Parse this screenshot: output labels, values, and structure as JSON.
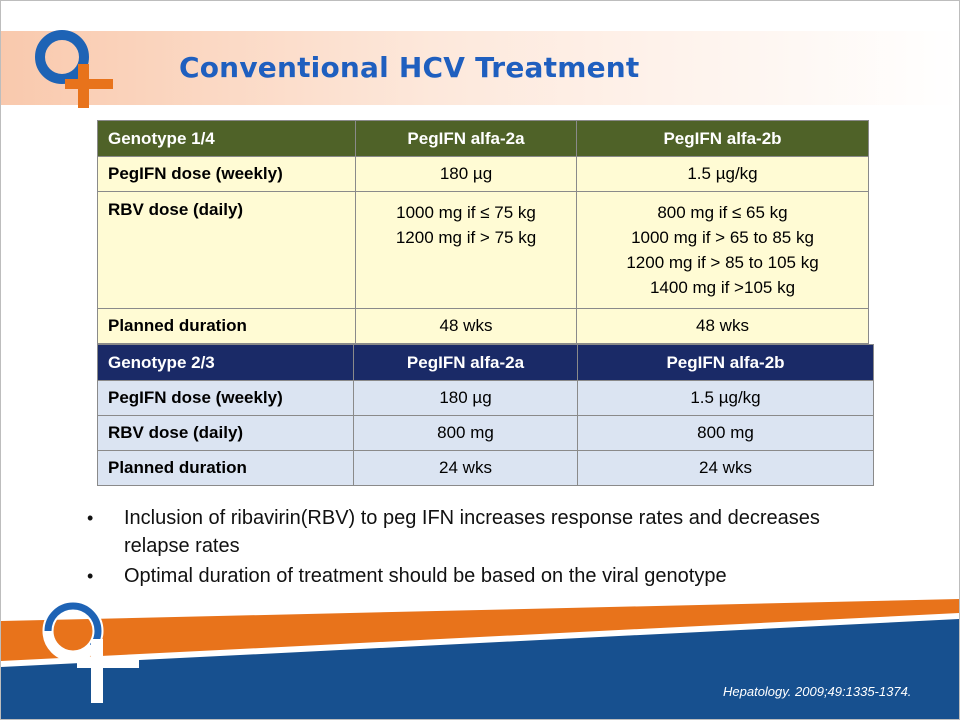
{
  "title": "Conventional HCV Treatment",
  "colors": {
    "title": "#1f5fbf",
    "orange": "#e8731b",
    "navy": "#17508f",
    "olive": "#4f6228",
    "dark_blue": "#1a2a67"
  },
  "table1": {
    "headers": [
      "Genotype  1/4",
      "PegIFN alfa-2a",
      "PegIFN alfa-2b"
    ],
    "rows": [
      {
        "label": "PegIFN dose (weekly)",
        "a": "180 µg",
        "b": "1.5 µg/kg"
      },
      {
        "label": "RBV dose (daily)",
        "a": "1000 mg if ≤ 75 kg\n1200 mg if > 75 kg",
        "b": "800 mg if ≤ 65 kg\n1000 mg if > 65 to 85 kg\n1200 mg if > 85 to 105 kg\n1400 mg if >105 kg"
      },
      {
        "label": "Planned duration",
        "a": "48 wks",
        "b": "48 wks"
      }
    ]
  },
  "table2": {
    "headers": [
      "Genotype  2/3",
      "PegIFN alfa-2a",
      "PegIFN alfa-2b"
    ],
    "rows": [
      {
        "label": "PegIFN dose (weekly)",
        "a": "180 µg",
        "b": "1.5 µg/kg"
      },
      {
        "label": "RBV dose (daily)",
        "a": "800 mg",
        "b": "800 mg"
      },
      {
        "label": "Planned duration",
        "a": "24 wks",
        "b": "24 wks"
      }
    ]
  },
  "bullets": [
    "Inclusion of ribavirin(RBV) to peg IFN increases response rates and decreases relapse rates",
    "Optimal duration of treatment should be based on the viral genotype"
  ],
  "bullet_symbol": "•",
  "citation": "Hepatology. 2009;49:1335-1374."
}
